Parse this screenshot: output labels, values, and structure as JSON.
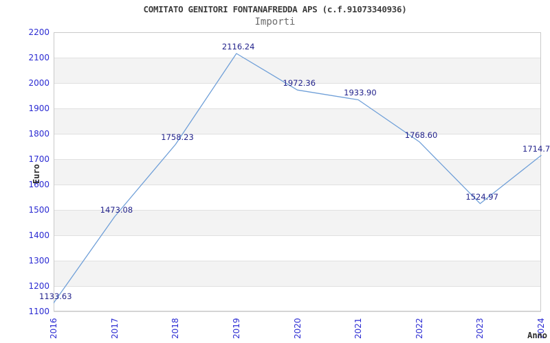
{
  "chart": {
    "title": "COMITATO GENITORI FONTANAFREDDA APS (c.f.91073340936)",
    "subtitle": "Importi"
  },
  "chart_data": {
    "type": "line",
    "title": "COMITATO GENITORI FONTANAFREDDA APS (c.f.91073340936)",
    "subtitle": "Importi",
    "xlabel": "Anno",
    "ylabel": "Euro",
    "x": [
      "2016",
      "2017",
      "2018",
      "2019",
      "2020",
      "2021",
      "2022",
      "2023",
      "2024"
    ],
    "values": [
      1133.63,
      1473.08,
      1758.23,
      2116.24,
      1972.36,
      1933.9,
      1768.6,
      1524.97,
      1714.7
    ],
    "point_labels": [
      "1133.63",
      "1473.08",
      "1758.23",
      "2116.24",
      "1972.36",
      "1933.90",
      "1768.60",
      "1524.97",
      "1714.7"
    ],
    "ylim": [
      1100,
      2200
    ],
    "ytick_step": 100,
    "yticks": [
      "1100",
      "1200",
      "1300",
      "1400",
      "1500",
      "1600",
      "1700",
      "1800",
      "1900",
      "2000",
      "2100",
      "2200"
    ],
    "grid": "horizontal-bands",
    "legend": "none",
    "colors": {
      "line": "#6f9fd8",
      "tick_label": "#2a2ad2",
      "point_label": "#23238c",
      "band_alt": "#f3f3f3",
      "band_main": "#ffffff",
      "gridline": "#e0e0e0",
      "plot_border": "#c9c9c9",
      "title": "#3d3d3d",
      "subtitle": "#6b6b6b"
    }
  }
}
